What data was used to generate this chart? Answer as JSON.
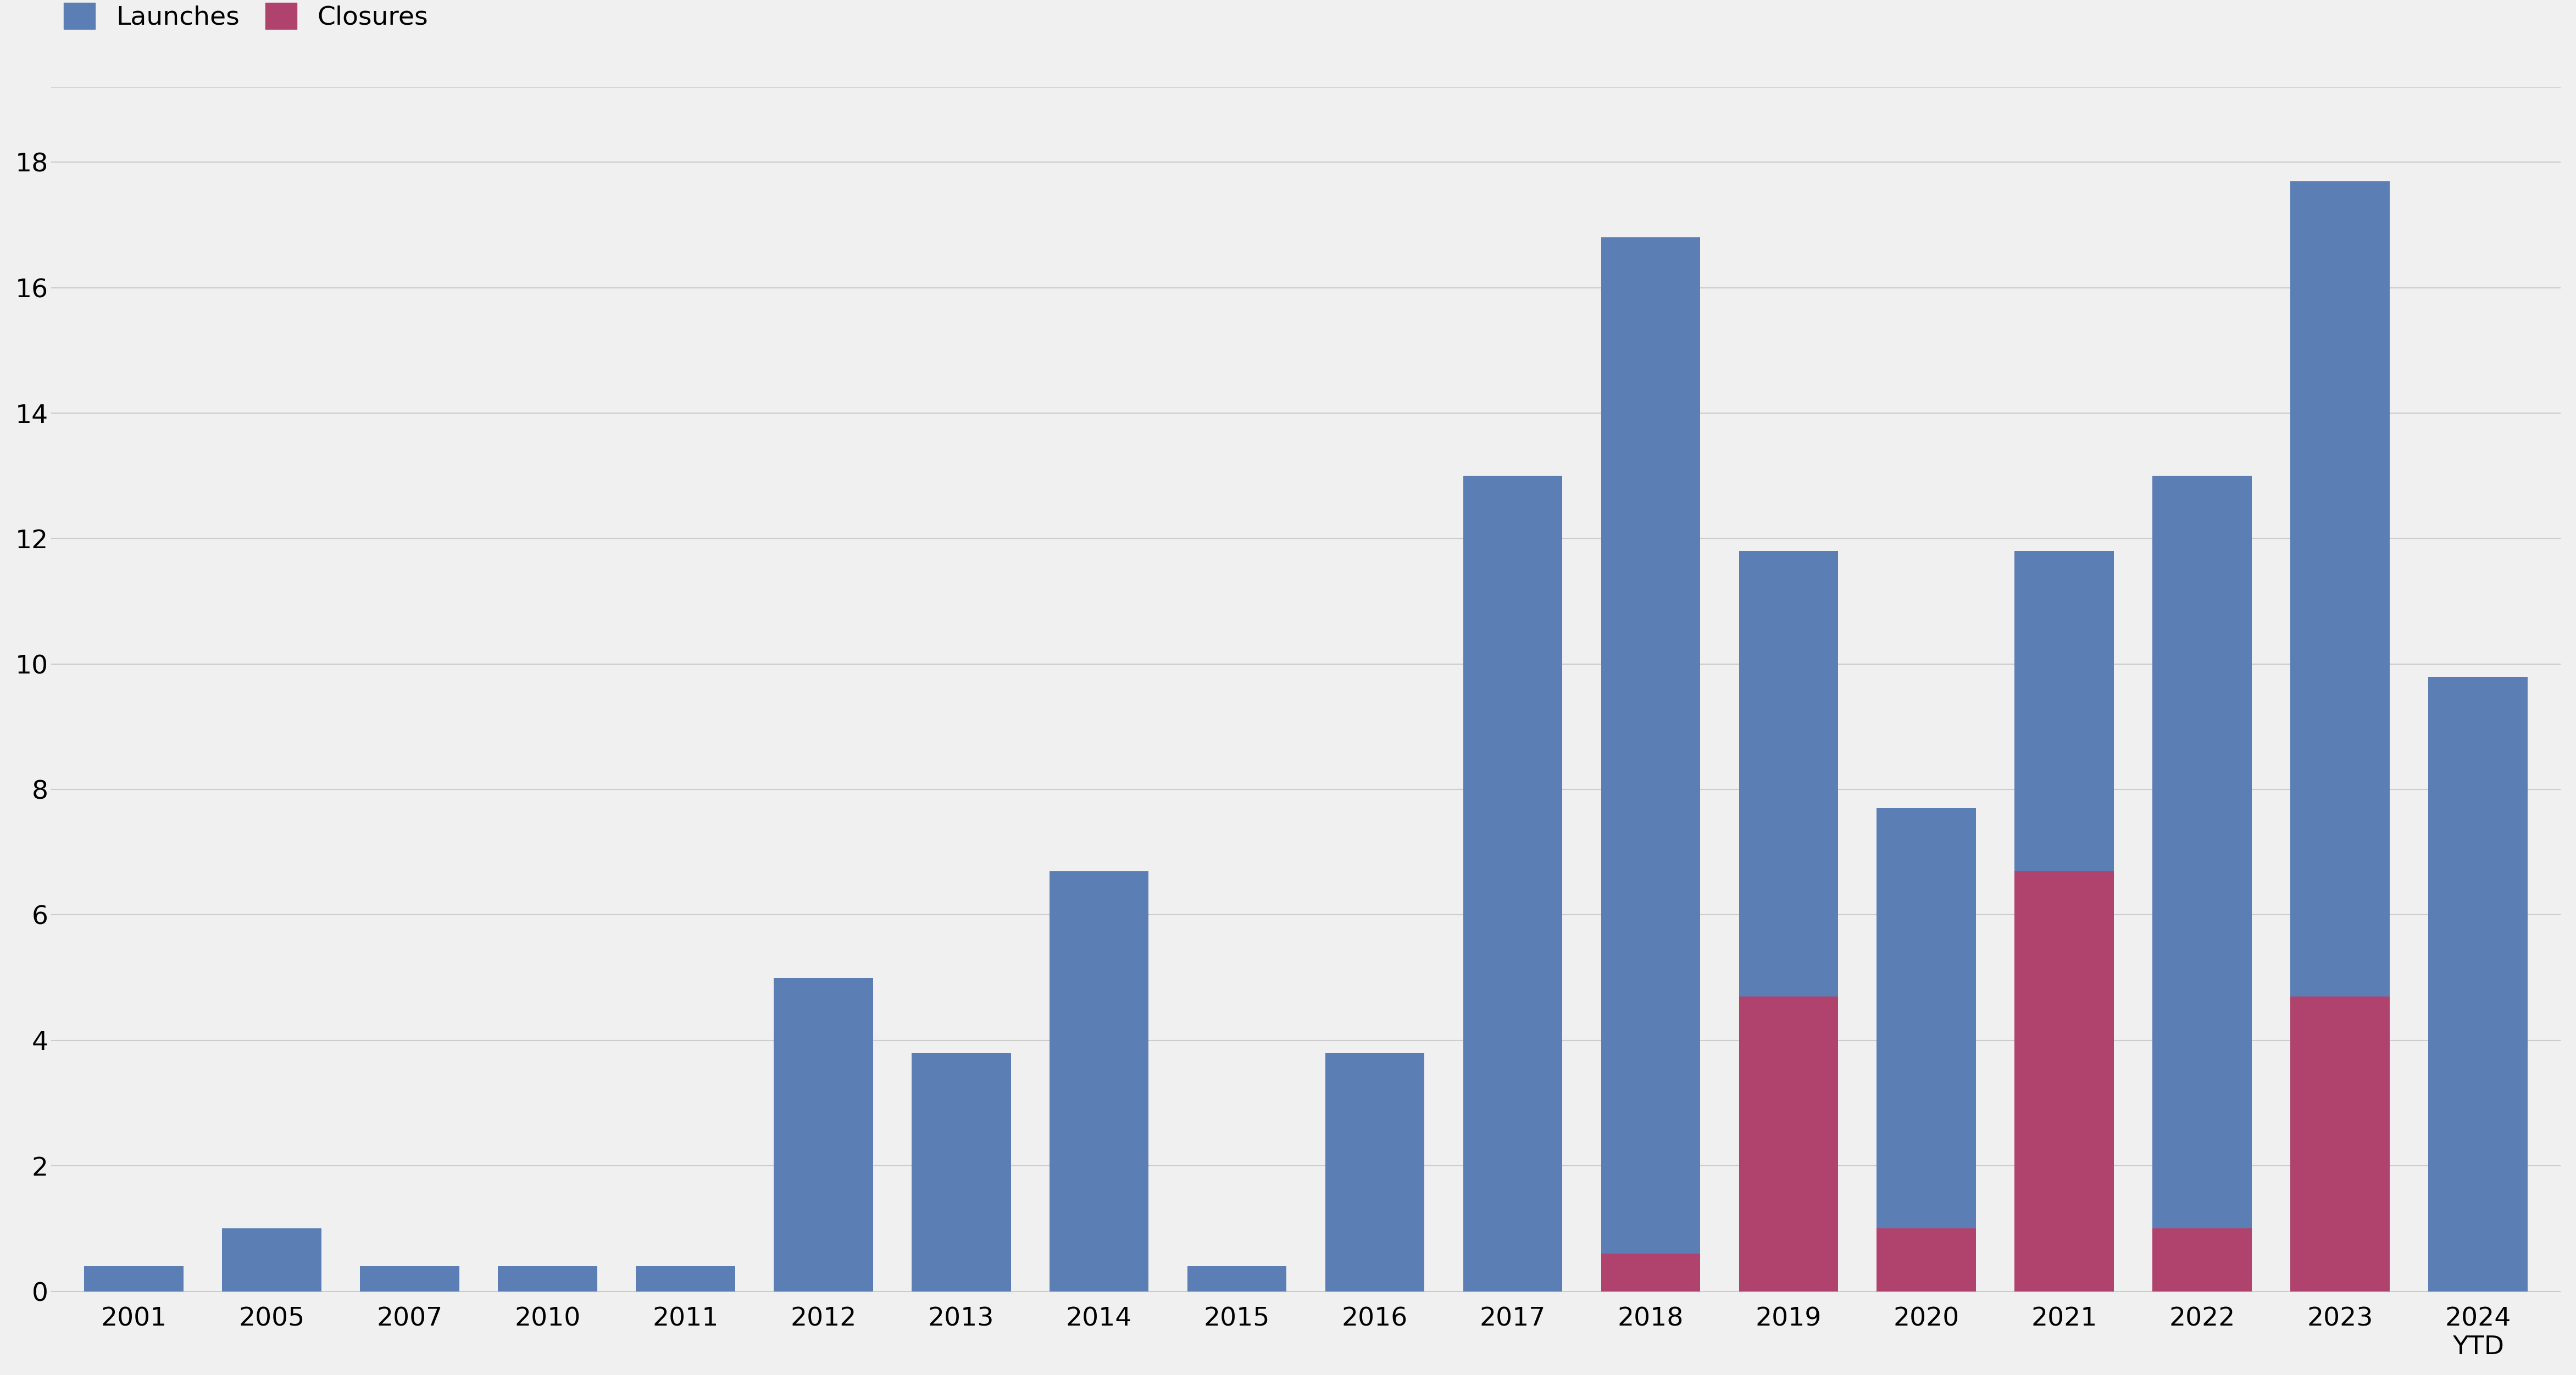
{
  "years": [
    "2001",
    "2005",
    "2007",
    "2010",
    "2011",
    "2012",
    "2013",
    "2014",
    "2015",
    "2016",
    "2017",
    "2018",
    "2019",
    "2020",
    "2021",
    "2022",
    "2023",
    "2024"
  ],
  "year_labels": [
    "2001",
    "2005",
    "2007",
    "2010",
    "2011",
    "2012",
    "2013",
    "2014",
    "2015",
    "2016",
    "2017",
    "2018",
    "2019",
    "2020",
    "2021",
    "2022",
    "2023",
    "2024\nYTD"
  ],
  "launches": [
    0.4,
    1.0,
    0.4,
    0.4,
    0.4,
    5.0,
    3.8,
    6.7,
    0.4,
    3.8,
    13.0,
    16.8,
    11.8,
    7.7,
    11.8,
    13.0,
    17.7,
    9.8
  ],
  "closures": [
    0,
    0,
    0,
    0,
    0,
    0,
    0,
    0,
    0,
    0,
    0,
    0.6,
    4.7,
    1.0,
    6.7,
    1.0,
    4.7,
    0
  ],
  "launch_color": "#5b7fb5",
  "closure_color": "#b0436e",
  "background_color": "#f0f0f0",
  "grid_color": "#cccccc",
  "ytick_values": [
    0,
    2,
    4,
    6,
    8,
    10,
    12,
    14,
    16,
    18
  ],
  "ylim": [
    -0.2,
    19.2
  ],
  "legend_launches": "Launches",
  "legend_closures": "Closures",
  "bar_width": 0.72,
  "tick_fontsize": 34,
  "legend_fontsize": 34
}
